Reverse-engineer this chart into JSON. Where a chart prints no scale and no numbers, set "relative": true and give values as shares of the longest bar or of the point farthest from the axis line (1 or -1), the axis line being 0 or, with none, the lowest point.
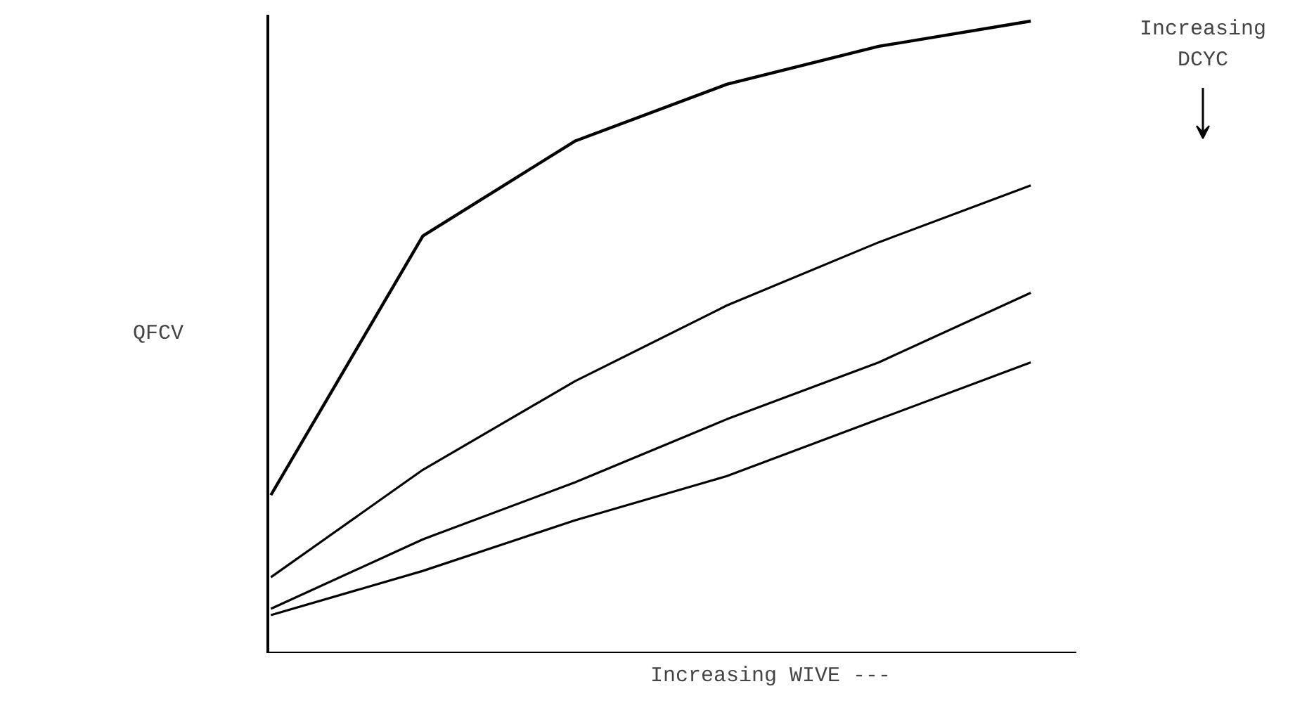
{
  "chart_data": {
    "type": "line",
    "relative": true,
    "xlabel": "Increasing WIVE ---",
    "ylabel": "QFCV",
    "annotations": [
      "Increasing\nDCYC"
    ],
    "categories": [
      null,
      null,
      null,
      null,
      null,
      null
    ],
    "series": [
      {
        "color": "#000000",
        "values": [
          0.25,
          0.66,
          0.81,
          0.9,
          0.96,
          1.0
        ]
      },
      {
        "color": "#000000",
        "values": [
          0.12,
          0.29,
          0.43,
          0.55,
          0.65,
          0.74
        ]
      },
      {
        "color": "#000000",
        "values": [
          0.07,
          0.18,
          0.27,
          0.37,
          0.46,
          0.57
        ]
      },
      {
        "color": "#000000",
        "values": [
          0.06,
          0.13,
          0.21,
          0.28,
          0.37,
          0.46
        ]
      }
    ]
  }
}
